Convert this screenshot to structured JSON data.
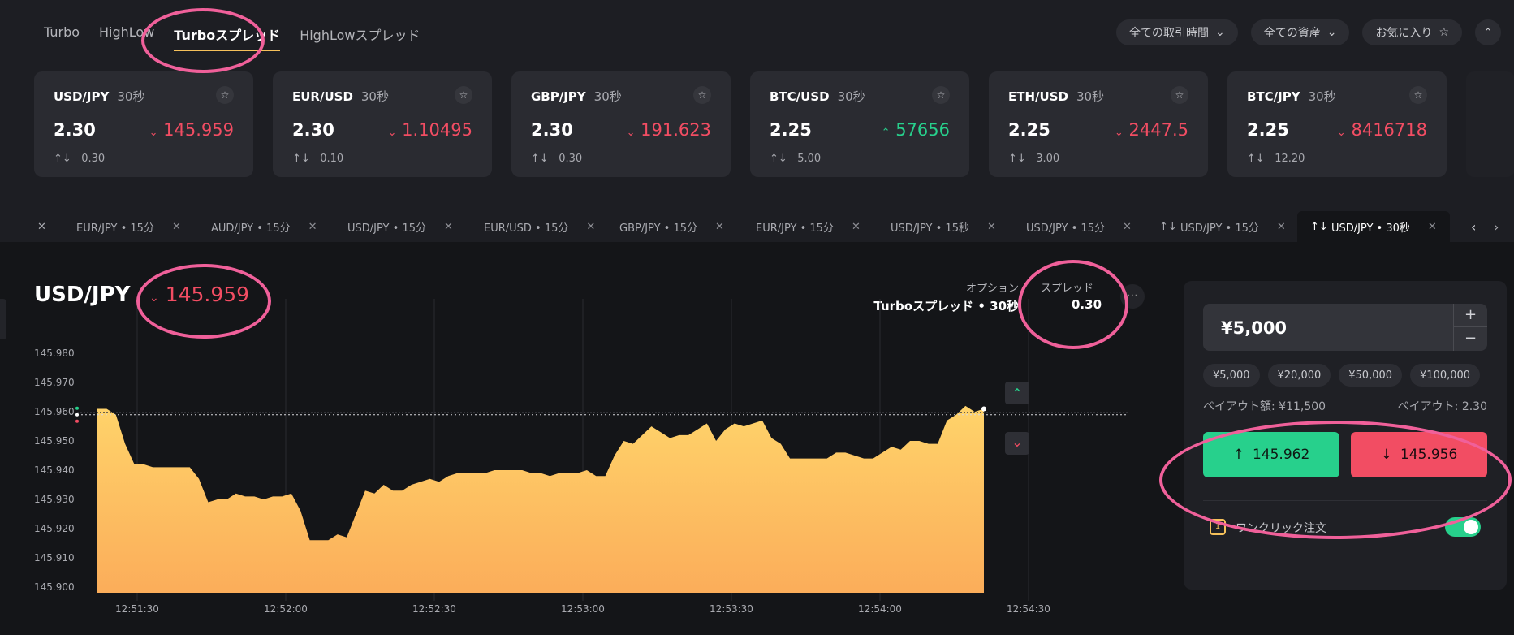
{
  "nav": {
    "tabs": [
      "Turbo",
      "HighLow",
      "Turboスプレッド",
      "HighLowスプレッド"
    ],
    "active": "Turboスプレッド"
  },
  "filters": {
    "trading_time": "全ての取引時間",
    "assets": "全ての資産",
    "favorites": "お気に入り"
  },
  "cards": [
    {
      "pair": "USD/JPY",
      "duration": "30秒",
      "payout": "2.30",
      "price": "145.959",
      "dir": "down",
      "spread": "0.30"
    },
    {
      "pair": "EUR/USD",
      "duration": "30秒",
      "payout": "2.30",
      "price": "1.10495",
      "dir": "down",
      "spread": "0.10"
    },
    {
      "pair": "GBP/JPY",
      "duration": "30秒",
      "payout": "2.30",
      "price": "191.623",
      "dir": "down",
      "spread": "0.30"
    },
    {
      "pair": "BTC/USD",
      "duration": "30秒",
      "payout": "2.25",
      "price": "57656",
      "dir": "up",
      "spread": "5.00"
    },
    {
      "pair": "ETH/USD",
      "duration": "30秒",
      "payout": "2.25",
      "price": "2447.5",
      "dir": "down",
      "spread": "3.00"
    },
    {
      "pair": "BTC/JPY",
      "duration": "30秒",
      "payout": "2.25",
      "price": "8416718",
      "dir": "down",
      "spread": "12.20"
    }
  ],
  "chart_tabs": [
    "EUR/JPY • 15分",
    "AUD/JPY • 15分",
    "USD/JPY • 15分",
    "EUR/USD • 15分",
    "GBP/JPY • 15分",
    "EUR/JPY • 15分",
    "USD/JPY • 15秒",
    "USD/JPY • 15分",
    "USD/JPY • 15分",
    "USD/JPY • 30秒"
  ],
  "asset": {
    "pair": "USD/JPY",
    "price": "145.959"
  },
  "option": {
    "label": "オプション",
    "value": "Turboスプレッド • 30秒"
  },
  "spread": {
    "label": "スプレッド",
    "value": "0.30"
  },
  "trade": {
    "amount": "¥5,000",
    "presets": [
      "¥5,000",
      "¥20,000",
      "¥50,000",
      "¥100,000"
    ],
    "payout_amount": "ペイアウト額: ¥11,500",
    "payout_rate": "ペイアウト: 2.30",
    "call_price": "145.962",
    "put_price": "145.956",
    "one_click": "ワンクリック注文"
  },
  "colors": {
    "up": "#27d08c",
    "down": "#f24d63",
    "accent": "#f5c05a",
    "highlight": "#f0609a"
  },
  "chart_data": {
    "type": "area",
    "y_ticks": [
      "145.980",
      "145.970",
      "145.960",
      "145.950",
      "145.940",
      "145.930",
      "145.920",
      "145.910",
      "145.900"
    ],
    "x_ticks": [
      "12:51:30",
      "12:52:00",
      "12:52:30",
      "12:53:00",
      "12:53:30",
      "12:54:00",
      "12:54:30"
    ],
    "ylim": [
      145.898,
      145.982
    ],
    "current": 145.959,
    "values": [
      145.961,
      145.961,
      145.959,
      145.949,
      145.942,
      145.942,
      145.941,
      145.941,
      145.941,
      145.941,
      145.941,
      145.937,
      145.929,
      145.93,
      145.93,
      145.932,
      145.931,
      145.931,
      145.93,
      145.931,
      145.931,
      145.932,
      145.926,
      145.916,
      145.916,
      145.916,
      145.918,
      145.917,
      145.925,
      145.933,
      145.932,
      145.935,
      145.933,
      145.933,
      145.935,
      145.936,
      145.937,
      145.936,
      145.938,
      145.939,
      145.939,
      145.939,
      145.939,
      145.94,
      145.94,
      145.94,
      145.94,
      145.939,
      145.939,
      145.938,
      145.939,
      145.939,
      145.939,
      145.94,
      145.938,
      145.938,
      145.945,
      145.95,
      145.949,
      145.952,
      145.955,
      145.953,
      145.951,
      145.952,
      145.952,
      145.954,
      145.956,
      145.95,
      145.954,
      145.956,
      145.955,
      145.956,
      145.957,
      145.951,
      145.949,
      145.944,
      145.944,
      145.944,
      145.944,
      145.944,
      145.946,
      145.946,
      145.945,
      145.944,
      145.944,
      145.946,
      145.948,
      145.947,
      145.95,
      145.95,
      145.949,
      145.949,
      145.957,
      145.959,
      145.962,
      145.96,
      145.961
    ]
  }
}
